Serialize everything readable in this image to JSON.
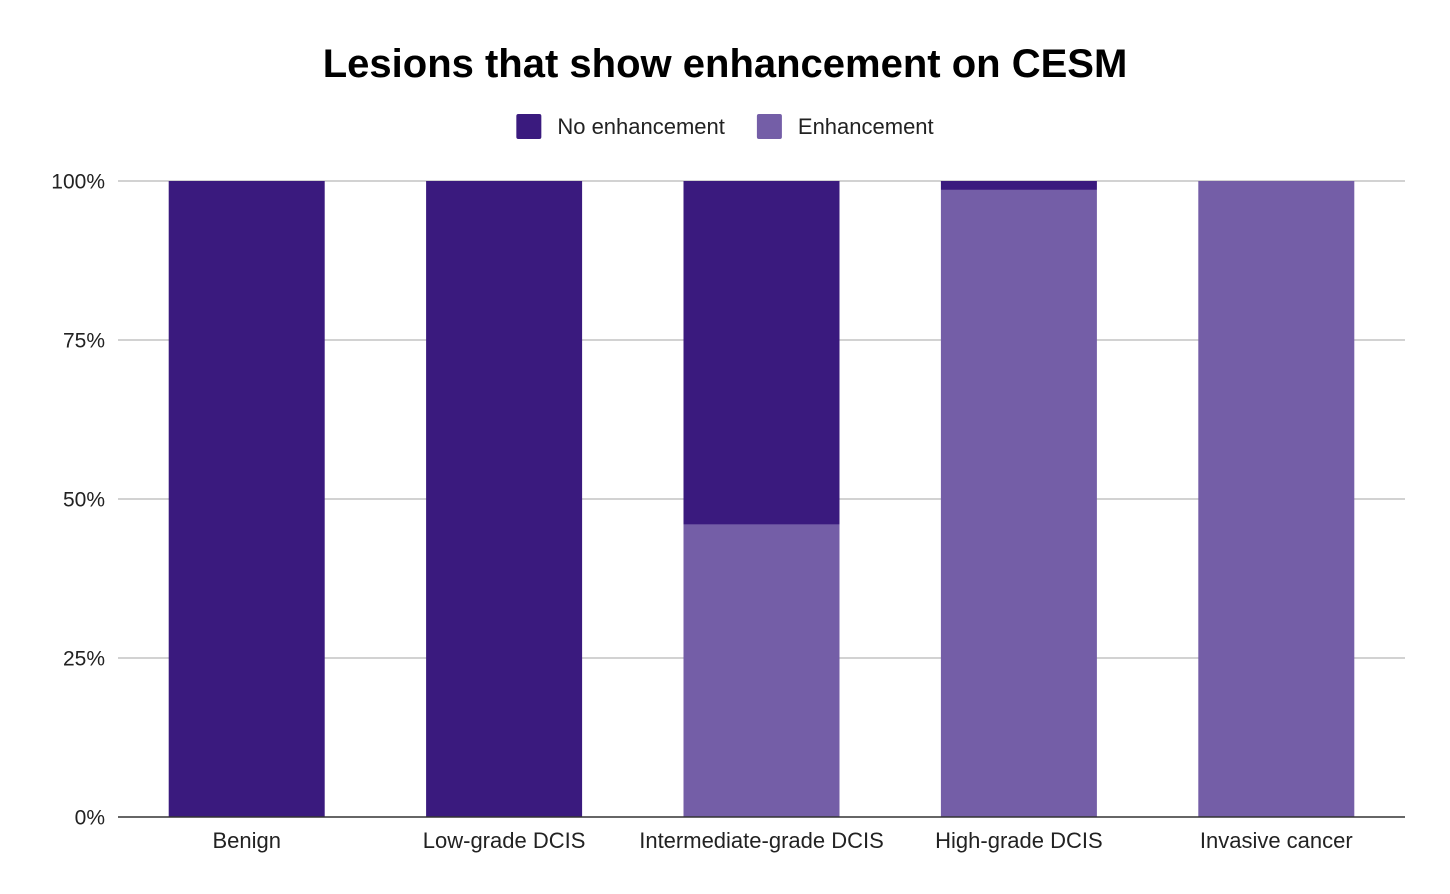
{
  "chart_data": {
    "type": "bar",
    "stacked": true,
    "normalized": true,
    "title": "Lesions that show enhancement on CESM",
    "xlabel": "",
    "ylabel": "",
    "categories": [
      "Benign",
      "Low-grade DCIS",
      "Intermediate-grade DCIS",
      "High-grade DCIS",
      "Invasive cancer"
    ],
    "series": [
      {
        "name": "Enhancement",
        "color": "#745ea7",
        "values": [
          0,
          0,
          46,
          98.6,
          100
        ]
      },
      {
        "name": "No enhancement",
        "color": "#3a1a7e",
        "values": [
          100,
          100,
          54,
          1.4,
          0
        ]
      }
    ],
    "legend": {
      "position": "top",
      "entries": [
        {
          "label": "No enhancement",
          "color": "#3a1a7e"
        },
        {
          "label": "Enhancement",
          "color": "#745ea7"
        }
      ]
    },
    "ylim": [
      0,
      100
    ],
    "yticks": [
      0,
      25,
      50,
      75,
      100
    ],
    "ytick_labels": [
      "0%",
      "25%",
      "50%",
      "75%",
      "100%"
    ],
    "grid": true
  }
}
